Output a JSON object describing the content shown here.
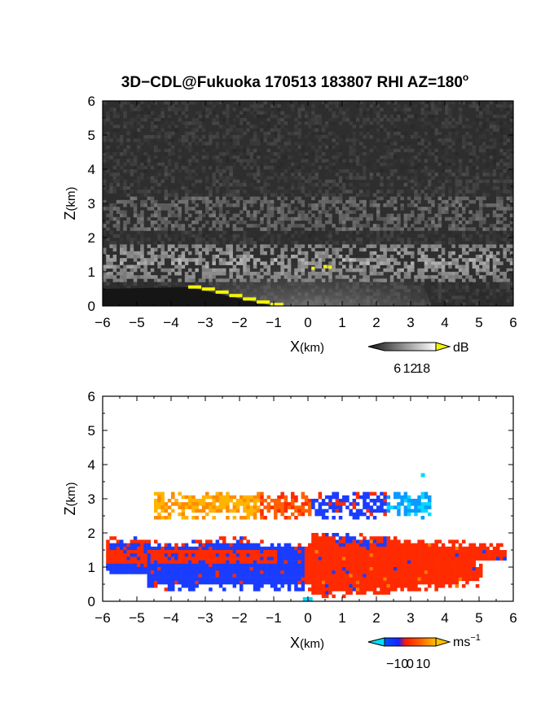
{
  "title": "3D−CDL@Fukuoka 170513 183807 RHI AZ=180",
  "title_superscript": "o",
  "chart_data": [
    {
      "type": "heatmap",
      "panel": "reflectivity",
      "xlabel": "X",
      "xunit": "(km)",
      "ylabel": "Z",
      "yunit": "(km)",
      "xlim": [
        -6,
        6
      ],
      "ylim": [
        0,
        6
      ],
      "xticks": [
        -6,
        -5,
        -4,
        -3,
        -2,
        -1,
        0,
        1,
        2,
        3,
        4,
        5,
        6
      ],
      "yticks": [
        0,
        1,
        2,
        3,
        4,
        5,
        6
      ],
      "colormap": "grayscale",
      "colorbar": {
        "unit": "dB",
        "ticks": [
          6,
          12,
          18
        ]
      },
      "features": [
        {
          "layer": "bright layer",
          "z_range": [
            0.8,
            1.9
          ],
          "x_range": [
            -6,
            6
          ]
        },
        {
          "layer": "upper faint layer",
          "z_range": [
            2.3,
            3.3
          ],
          "x_range": [
            -6,
            6
          ]
        },
        {
          "layer": "near-radar fan",
          "z_range": [
            0,
            1.0
          ],
          "x_range": [
            -1.5,
            1.5
          ]
        },
        {
          "layer": "ground clutter (yellow)",
          "z_range": [
            0,
            0.55
          ],
          "x_range": [
            -3.5,
            -1.0
          ]
        }
      ],
      "colors": {
        "background": "#2e2e2e",
        "clutter": "#f5f500"
      }
    },
    {
      "type": "heatmap",
      "panel": "doppler velocity",
      "xlabel": "X",
      "xunit": "(km)",
      "ylabel": "Z",
      "yunit": "(km)",
      "xlim": [
        -6,
        6
      ],
      "ylim": [
        0,
        6
      ],
      "xticks": [
        -6,
        -5,
        -4,
        -3,
        -2,
        -1,
        0,
        1,
        2,
        3,
        4,
        5,
        6
      ],
      "yticks": [
        0,
        1,
        2,
        3,
        4,
        5,
        6
      ],
      "colormap": "cyan-blue-red-yellow",
      "colorbar": {
        "unit": "ms",
        "unit_superscript": "−1",
        "ticks": [
          -10,
          0,
          10
        ],
        "tick_labels": [
          "−10",
          "0",
          "10"
        ]
      },
      "features": [
        {
          "region": "negative velocity (blue)",
          "x_range": [
            -5.8,
            0
          ],
          "z_range": [
            0.3,
            1.8
          ]
        },
        {
          "region": "positive velocity (red)",
          "x_range": [
            0,
            5.2
          ],
          "z_range": [
            0.1,
            2.3
          ]
        },
        {
          "region": "upper layer mixed",
          "x_range": [
            -4.5,
            3.5
          ],
          "z_range": [
            2.5,
            3.2
          ]
        },
        {
          "region": "isolated point",
          "x": 3.3,
          "z": 3.7
        }
      ],
      "colors": {
        "neg_strong": "#00d8ff",
        "neg": "#1a3cff",
        "pos": "#ff2a00",
        "pos_strong": "#ffb400"
      }
    }
  ]
}
